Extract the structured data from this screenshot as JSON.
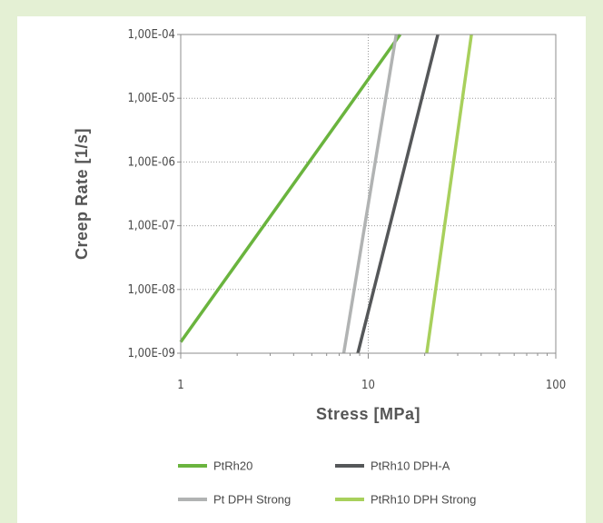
{
  "chart_data": {
    "type": "line",
    "xlabel": "Stress [MPa]",
    "ylabel": "Creep Rate [1/s]",
    "x_scale": "log",
    "y_scale": "log",
    "xlim": [
      1,
      100
    ],
    "ylim": [
      1e-09,
      0.0001
    ],
    "x_ticks": [
      {
        "value": 1,
        "label": "1"
      },
      {
        "value": 10,
        "label": "10"
      },
      {
        "value": 100,
        "label": "100"
      }
    ],
    "y_ticks": [
      {
        "value": 0.0001,
        "label": "1,00E-04"
      },
      {
        "value": 1e-05,
        "label": "1,00E-05"
      },
      {
        "value": 1e-06,
        "label": "1,00E-06"
      },
      {
        "value": 1e-07,
        "label": "1,00E-07"
      },
      {
        "value": 1e-08,
        "label": "1,00E-08"
      },
      {
        "value": 1e-09,
        "label": "1,00E-09"
      }
    ],
    "grid": "dotted, major decades",
    "legend_position": "bottom",
    "series": [
      {
        "name": "PtRh20",
        "color": "#6ab43e",
        "x": [
          1,
          14.8
        ],
        "y": [
          1.5e-09,
          0.0001
        ]
      },
      {
        "name": "PtRh10 DPH-A",
        "color": "#555759",
        "x": [
          8.8,
          23.5
        ],
        "y": [
          1e-09,
          0.0001
        ]
      },
      {
        "name": "Pt DPH Strong",
        "color": "#b1b3b3",
        "x": [
          7.4,
          14.1
        ],
        "y": [
          1e-09,
          0.0001
        ]
      },
      {
        "name": "PtRh10 DPH Strong",
        "color": "#a8d05c",
        "x": [
          20.5,
          35.5
        ],
        "y": [
          1e-09,
          0.0001
        ]
      }
    ]
  }
}
